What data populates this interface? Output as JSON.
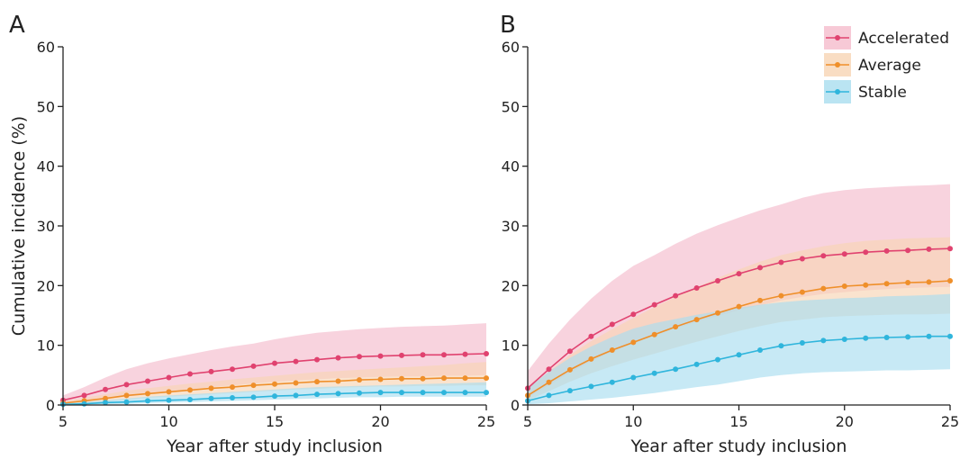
{
  "chart_data": [
    {
      "panel": "A",
      "type": "line",
      "xlabel": "Year after study inclusion",
      "ylabel": "Cumulative incidence (%)",
      "xlim": [
        5,
        25
      ],
      "ylim": [
        0,
        60
      ],
      "x_ticks": [
        5,
        10,
        15,
        20,
        25
      ],
      "y_ticks": [
        0,
        10,
        20,
        30,
        40,
        50,
        60
      ],
      "x": [
        5,
        6,
        7,
        8,
        9,
        10,
        11,
        12,
        13,
        14,
        15,
        16,
        17,
        18,
        19,
        20,
        21,
        22,
        23,
        24,
        25
      ],
      "series": [
        {
          "name": "Accelerated",
          "color": "#e0426f",
          "band_color": "#f5bccc",
          "values": [
            0.8,
            1.6,
            2.6,
            3.4,
            4.0,
            4.6,
            5.2,
            5.6,
            6.0,
            6.5,
            7.0,
            7.3,
            7.6,
            7.9,
            8.1,
            8.2,
            8.3,
            8.4,
            8.4,
            8.5,
            8.6
          ],
          "lower": [
            0.2,
            0.6,
            1.0,
            1.4,
            1.8,
            2.2,
            2.6,
            3.0,
            3.3,
            3.6,
            3.9,
            4.1,
            4.3,
            4.5,
            4.6,
            4.7,
            4.8,
            4.8,
            4.9,
            4.9,
            5.0
          ],
          "upper": [
            1.6,
            3.0,
            4.6,
            6.0,
            7.0,
            7.8,
            8.5,
            9.2,
            9.8,
            10.3,
            11.0,
            11.6,
            12.1,
            12.4,
            12.7,
            12.9,
            13.1,
            13.2,
            13.3,
            13.5,
            13.7
          ]
        },
        {
          "name": "Average",
          "color": "#ef8f2a",
          "band_color": "#f7d4b4",
          "values": [
            0.3,
            0.7,
            1.1,
            1.6,
            1.9,
            2.2,
            2.5,
            2.8,
            3.0,
            3.3,
            3.5,
            3.7,
            3.9,
            4.0,
            4.2,
            4.3,
            4.4,
            4.4,
            4.5,
            4.5,
            4.5
          ],
          "lower": [
            0.1,
            0.3,
            0.6,
            0.9,
            1.2,
            1.4,
            1.6,
            1.8,
            2.0,
            2.2,
            2.4,
            2.6,
            2.7,
            2.9,
            3.0,
            3.1,
            3.1,
            3.2,
            3.2,
            3.3,
            3.3
          ],
          "upper": [
            0.6,
            1.2,
            1.8,
            2.4,
            2.8,
            3.2,
            3.6,
            3.9,
            4.3,
            4.6,
            4.9,
            5.2,
            5.5,
            5.7,
            5.9,
            6.1,
            6.3,
            6.5,
            6.7,
            7.0,
            7.2
          ]
        },
        {
          "name": "Stable",
          "color": "#2fb5dc",
          "band_color": "#a9ddef",
          "values": [
            0.1,
            0.2,
            0.4,
            0.5,
            0.7,
            0.8,
            0.9,
            1.1,
            1.2,
            1.3,
            1.5,
            1.6,
            1.8,
            1.9,
            2.0,
            2.1,
            2.1,
            2.1,
            2.1,
            2.1,
            2.1
          ],
          "lower": [
            0.0,
            0.1,
            0.1,
            0.2,
            0.3,
            0.4,
            0.5,
            0.6,
            0.7,
            0.8,
            0.9,
            1.0,
            1.1,
            1.2,
            1.3,
            1.3,
            1.4,
            1.4,
            1.4,
            1.4,
            1.4
          ],
          "upper": [
            0.3,
            0.5,
            0.8,
            1.1,
            1.4,
            1.6,
            1.8,
            2.0,
            2.2,
            2.4,
            2.6,
            2.8,
            3.0,
            3.1,
            3.2,
            3.3,
            3.4,
            3.5,
            3.6,
            3.7,
            3.8
          ]
        }
      ]
    },
    {
      "panel": "B",
      "type": "line",
      "xlabel": "Year after study inclusion",
      "ylabel": "",
      "xlim": [
        5,
        25
      ],
      "ylim": [
        0,
        60
      ],
      "x_ticks": [
        5,
        10,
        15,
        20,
        25
      ],
      "y_ticks": [
        0,
        10,
        20,
        30,
        40,
        50,
        60
      ],
      "legend_position": "top-right",
      "x": [
        5,
        6,
        7,
        8,
        9,
        10,
        11,
        12,
        13,
        14,
        15,
        16,
        17,
        18,
        19,
        20,
        21,
        22,
        23,
        24,
        25
      ],
      "series": [
        {
          "name": "Accelerated",
          "color": "#e0426f",
          "band_color": "#f5bccc",
          "values": [
            2.8,
            6.0,
            9.0,
            11.5,
            13.5,
            15.2,
            16.8,
            18.3,
            19.6,
            20.8,
            22.0,
            23.0,
            23.9,
            24.5,
            25.0,
            25.3,
            25.6,
            25.8,
            25.9,
            26.1,
            26.2
          ],
          "lower": [
            1.2,
            3.3,
            5.4,
            7.3,
            8.9,
            10.3,
            11.6,
            12.8,
            13.9,
            14.9,
            15.9,
            16.7,
            17.5,
            18.1,
            18.6,
            18.9,
            19.2,
            19.4,
            19.6,
            19.7,
            19.8
          ],
          "upper": [
            5.7,
            10.3,
            14.3,
            17.8,
            20.8,
            23.3,
            25.1,
            27.0,
            28.7,
            30.1,
            31.4,
            32.6,
            33.6,
            34.7,
            35.5,
            36.0,
            36.3,
            36.5,
            36.7,
            36.8,
            37.0
          ]
        },
        {
          "name": "Average",
          "color": "#ef8f2a",
          "band_color": "#f7d4b4",
          "values": [
            1.6,
            3.8,
            5.9,
            7.7,
            9.2,
            10.5,
            11.8,
            13.1,
            14.3,
            15.4,
            16.5,
            17.5,
            18.3,
            18.9,
            19.5,
            19.9,
            20.1,
            20.3,
            20.5,
            20.6,
            20.8
          ],
          "lower": [
            0.8,
            2.3,
            3.9,
            5.3,
            6.5,
            7.6,
            8.6,
            9.6,
            10.6,
            11.5,
            12.4,
            13.2,
            13.9,
            14.3,
            14.7,
            14.9,
            15.0,
            15.1,
            15.2,
            15.2,
            15.3
          ],
          "upper": [
            2.7,
            5.6,
            8.4,
            10.7,
            12.7,
            14.6,
            16.4,
            18.1,
            19.7,
            21.3,
            22.7,
            24.0,
            25.1,
            25.9,
            26.6,
            27.1,
            27.5,
            27.7,
            27.9,
            28.0,
            28.1
          ]
        },
        {
          "name": "Stable",
          "color": "#2fb5dc",
          "band_color": "#a9ddef",
          "values": [
            0.7,
            1.6,
            2.4,
            3.1,
            3.8,
            4.6,
            5.3,
            6.0,
            6.8,
            7.6,
            8.4,
            9.2,
            9.9,
            10.4,
            10.8,
            11.0,
            11.2,
            11.3,
            11.4,
            11.5,
            11.5
          ],
          "lower": [
            0.1,
            0.3,
            0.6,
            0.9,
            1.2,
            1.6,
            2.0,
            2.5,
            3.0,
            3.4,
            4.0,
            4.6,
            5.0,
            5.3,
            5.5,
            5.6,
            5.7,
            5.8,
            5.8,
            5.9,
            6.0
          ],
          "upper": [
            2.8,
            5.6,
            7.9,
            9.8,
            11.4,
            12.8,
            13.7,
            14.4,
            15.1,
            15.7,
            16.3,
            16.8,
            17.2,
            17.5,
            17.7,
            17.9,
            18.0,
            18.2,
            18.3,
            18.4,
            18.6
          ]
        }
      ]
    }
  ]
}
